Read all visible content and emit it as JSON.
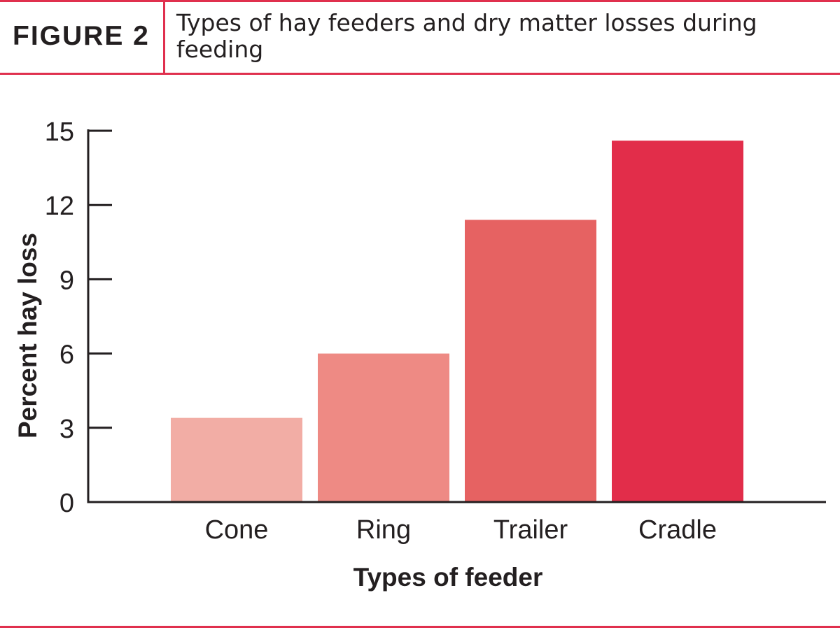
{
  "header": {
    "figure_label": "FIGURE 2",
    "title": "Types of hay feeders and dry matter losses during feeding"
  },
  "colors": {
    "rule": "#e0304e",
    "axis": "#231f20",
    "bars": [
      "#f2ada5",
      "#ee8a84",
      "#e66262",
      "#e22d4a"
    ]
  },
  "chart_data": {
    "type": "bar",
    "categories": [
      "Cone",
      "Ring",
      "Trailer",
      "Cradle"
    ],
    "values": [
      3.4,
      6.0,
      11.4,
      14.6
    ],
    "title": "Types of hay feeders and dry matter losses during feeding",
    "xlabel": "Types of feeder",
    "ylabel": "Percent hay loss",
    "ylim": [
      0,
      15
    ],
    "yticks": [
      0,
      3,
      6,
      9,
      12,
      15
    ],
    "grid": false,
    "legend": "none"
  }
}
